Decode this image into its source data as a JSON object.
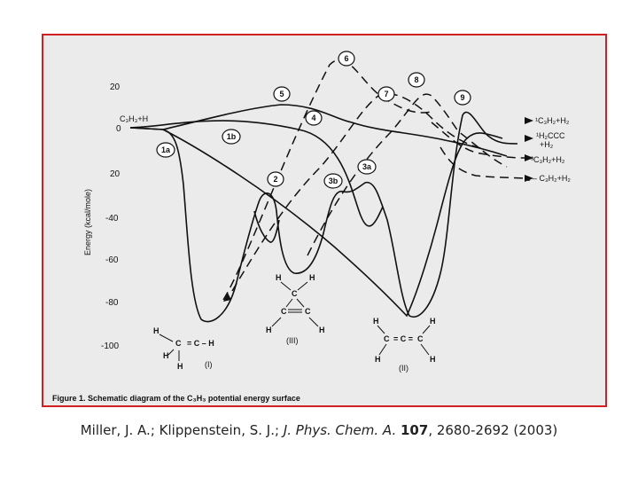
{
  "figure": {
    "caption": "Figure 1. Schematic diagram of the C₃H₃ potential energy surface",
    "axis": {
      "ylabel": "Energy (kcal/mole)",
      "ticks": [
        "20",
        "0",
        "20",
        "-40",
        "-60",
        "-80",
        "-100"
      ]
    },
    "reactant_label": "C₃H₃+H",
    "state_labels": [
      "1a",
      "1b",
      "2",
      "3a",
      "3b",
      "4",
      "5",
      "6",
      "7",
      "8",
      "9"
    ],
    "product_labels": [
      "¹C₃H₂+H₂",
      "¹H₂CCC",
      "+H₂",
      "³C₃H₂+H₂",
      "c – C₃H₂+H₂"
    ],
    "structures": {
      "I": {
        "label": "(I)",
        "atoms": [
          "H",
          "C",
          "C",
          "C",
          "H",
          "H",
          "H"
        ],
        "bond": "= C – H"
      },
      "II": {
        "label": "(II)",
        "atoms": [
          "H",
          "H",
          "C",
          "C",
          "C",
          "H",
          "H"
        ],
        "bonds": "= C ="
      },
      "III": {
        "label": "(III)",
        "atoms": [
          "H",
          "H",
          "C",
          "C",
          "C",
          "H",
          "H"
        ]
      }
    }
  },
  "citation": {
    "authors": "Miller, J. A.; Klippenstein, S. J.; ",
    "journal": "J. Phys. Chem. A.",
    "volume": "107",
    "pages": ",  2680-2692 (2003)"
  }
}
